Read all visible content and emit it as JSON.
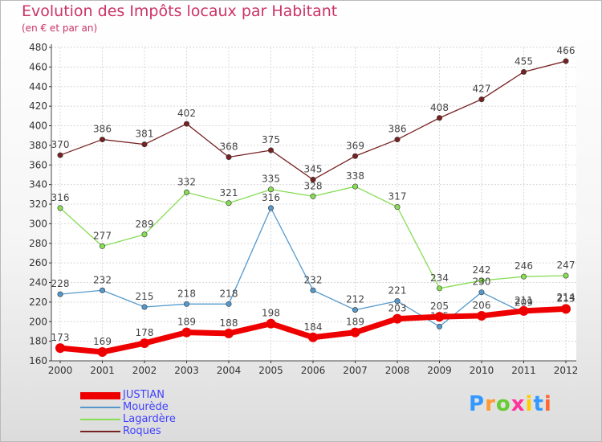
{
  "header": {
    "title": "Evolution des Impôts locaux par Habitant",
    "subtitle": "(en € et par an)"
  },
  "logo": {
    "text": "Proxiti",
    "colors": [
      "#3399ff",
      "#ff9933",
      "#66cc33",
      "#ff3399",
      "#ffcc00",
      "#3399ff",
      "#ff6633"
    ]
  },
  "chart_data": {
    "type": "line",
    "x": [
      2000,
      2001,
      2002,
      2003,
      2004,
      2005,
      2006,
      2007,
      2008,
      2009,
      2010,
      2011,
      2012
    ],
    "ylim": [
      160,
      480
    ],
    "yticks": [
      160,
      180,
      200,
      220,
      240,
      260,
      280,
      300,
      320,
      340,
      360,
      380,
      400,
      420,
      440,
      460,
      480
    ],
    "grid": true,
    "legend_position": "bottom-left",
    "series": [
      {
        "name": "JUSTIAN",
        "color": "#ee0000",
        "values": [
          173,
          169,
          178,
          189,
          188,
          198,
          184,
          189,
          203,
          205,
          206,
          211,
          213
        ]
      },
      {
        "name": "Mourède",
        "color": "#5599cc",
        "values": [
          228,
          232,
          215,
          218,
          218,
          316,
          232,
          212,
          221,
          195,
          230,
          209,
          214
        ]
      },
      {
        "name": "Lagardère",
        "color": "#88dd55",
        "values": [
          316,
          277,
          289,
          332,
          321,
          335,
          328,
          338,
          317,
          234,
          242,
          246,
          247
        ]
      },
      {
        "name": "Roques",
        "color": "#772222",
        "values": [
          370,
          386,
          381,
          402,
          368,
          375,
          345,
          369,
          386,
          408,
          427,
          455,
          466
        ]
      }
    ]
  }
}
